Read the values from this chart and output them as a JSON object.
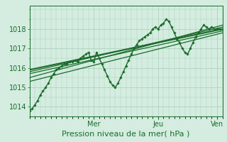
{
  "bg_color": "#d4ede0",
  "plot_bg_color": "#d4ede0",
  "grid_color": "#a8ccb8",
  "line_color": "#1a6b2a",
  "xlabel": "Pression niveau de la mer( hPa )",
  "xlabel_fontsize": 8,
  "tick_fontsize": 7,
  "day_labels": [
    "Mer",
    "Jeu",
    "Ven"
  ],
  "day_positions": [
    48,
    96,
    140
  ],
  "ylim": [
    1013.5,
    1019.2
  ],
  "yticks": [
    1014,
    1015,
    1016,
    1017,
    1018
  ],
  "xlim": [
    0,
    144
  ],
  "series": [
    {
      "x": [
        0,
        2,
        4,
        6,
        8,
        10,
        12,
        14,
        16,
        18,
        20,
        22,
        24,
        26,
        28,
        30,
        32,
        34,
        36,
        38,
        40,
        42,
        44,
        46,
        48,
        50,
        52,
        54,
        56,
        58,
        60,
        62,
        64,
        66,
        68,
        70,
        72,
        74,
        76,
        78,
        80,
        82,
        84,
        86,
        88,
        90,
        92,
        94,
        96,
        98,
        100,
        102,
        104,
        106,
        108,
        110,
        112,
        114,
        116,
        118,
        120,
        122,
        124,
        126,
        128,
        130,
        132,
        134,
        136,
        138,
        140,
        142,
        144
      ],
      "y": [
        1013.8,
        1013.9,
        1014.1,
        1014.3,
        1014.6,
        1014.8,
        1015.0,
        1015.2,
        1015.5,
        1015.7,
        1015.9,
        1016.0,
        1016.1,
        1016.2,
        1016.2,
        1016.3,
        1016.3,
        1016.4,
        1016.3,
        1016.5,
        1016.6,
        1016.7,
        1016.8,
        1016.4,
        1016.3,
        1016.8,
        1016.5,
        1016.2,
        1015.9,
        1015.6,
        1015.3,
        1015.1,
        1015.0,
        1015.2,
        1015.5,
        1015.8,
        1016.1,
        1016.4,
        1016.7,
        1017.0,
        1017.2,
        1017.4,
        1017.5,
        1017.6,
        1017.7,
        1017.8,
        1018.0,
        1018.1,
        1018.0,
        1018.2,
        1018.3,
        1018.5,
        1018.4,
        1018.1,
        1017.8,
        1017.5,
        1017.3,
        1017.0,
        1016.8,
        1016.7,
        1017.0,
        1017.3,
        1017.6,
        1017.8,
        1018.0,
        1018.2,
        1018.1,
        1018.0,
        1018.1,
        1018.0,
        1018.0,
        1018.0,
        1018.0
      ],
      "marker": true,
      "lw": 1.0
    },
    {
      "x": [
        0,
        144
      ],
      "y": [
        1015.9,
        1018.0
      ],
      "marker": false,
      "lw": 1.5
    },
    {
      "x": [
        0,
        144
      ],
      "y": [
        1015.5,
        1018.2
      ],
      "marker": false,
      "lw": 0.9
    },
    {
      "x": [
        0,
        144
      ],
      "y": [
        1015.7,
        1017.9
      ],
      "marker": false,
      "lw": 0.9
    },
    {
      "x": [
        0,
        144
      ],
      "y": [
        1015.8,
        1018.1
      ],
      "marker": false,
      "lw": 0.9
    },
    {
      "x": [
        0,
        144
      ],
      "y": [
        1015.3,
        1017.8
      ],
      "marker": false,
      "lw": 0.9
    }
  ]
}
